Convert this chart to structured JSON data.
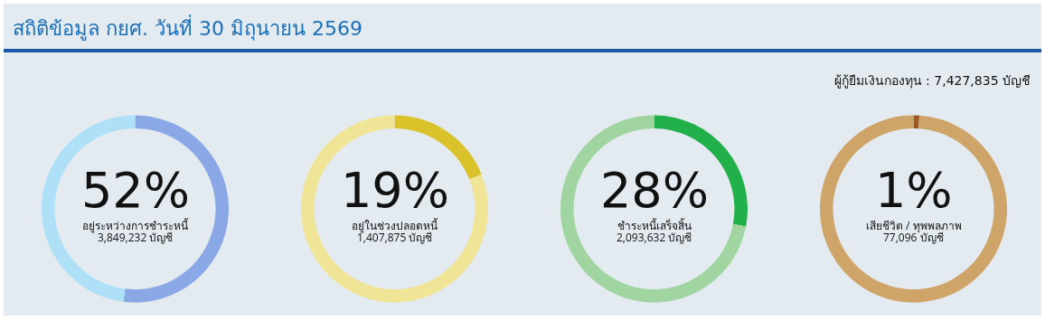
{
  "chart_data": [
    {
      "type": "other",
      "title": "สถิติข้อมูล กยศ. วันที่ 30 มิถุนายน 2569",
      "annotations": [
        "ผู้กู้ยืมเงินกองทุน : 7,427,835 บัญชี"
      ]
    },
    {
      "type": "donut",
      "categories": [
        "อยู่ระหว่างการชำระหนี้",
        null
      ],
      "values": [
        52,
        48
      ],
      "colors": [
        "#8aa8e6",
        "#aee0f8"
      ],
      "value_labels": [
        "52%",
        null
      ],
      "annotations": [
        "3,849,232 บัญชี"
      ]
    },
    {
      "type": "donut",
      "categories": [
        "อยู่ในช่วงปลอดหนี้",
        null
      ],
      "values": [
        19,
        81
      ],
      "colors": [
        "#d9c22a",
        "#f0e496"
      ],
      "value_labels": [
        "19%",
        null
      ],
      "annotations": [
        "1,407,875 บัญชี"
      ]
    },
    {
      "type": "donut",
      "categories": [
        "ชำระหนี้เสร็จสิ้น",
        null
      ],
      "values": [
        28,
        72
      ],
      "colors": [
        "#22b04a",
        "#a0d4a0"
      ],
      "value_labels": [
        "28%",
        null
      ],
      "annotations": [
        "2,093,632 บัญชี"
      ]
    },
    {
      "type": "donut",
      "categories": [
        "เสียชีวิต / ทุพพลภาพ",
        null
      ],
      "values": [
        1,
        99
      ],
      "colors": [
        "#a0581e",
        "#cfa468"
      ],
      "value_labels": [
        "1%",
        null
      ],
      "annotations": [
        "77,096 บัญชี"
      ]
    }
  ]
}
